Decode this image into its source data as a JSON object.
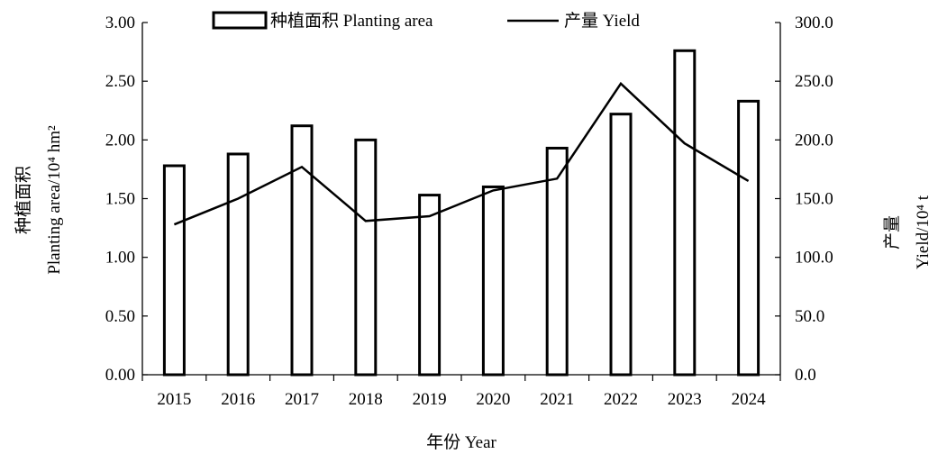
{
  "chart_data": {
    "type": "bar",
    "categories": [
      "2015",
      "2016",
      "2017",
      "2018",
      "2019",
      "2020",
      "2021",
      "2022",
      "2023",
      "2024"
    ],
    "series": [
      {
        "name": "种植面积 Planting area",
        "type": "bar",
        "axis": "left",
        "values": [
          1.78,
          1.88,
          2.12,
          2.0,
          1.53,
          1.6,
          1.93,
          2.22,
          2.76,
          2.33
        ]
      },
      {
        "name": "产量 Yield",
        "type": "line",
        "axis": "right",
        "values": [
          128.0,
          150.0,
          177.0,
          131.0,
          135.0,
          157.0,
          167.0,
          248.0,
          197.0,
          165.0
        ]
      }
    ],
    "xlabel": "年份 Year",
    "ylabel_left_cn": "种植面积",
    "ylabel_left_en": "Planting area/10⁴ hm²",
    "ylabel_right_cn": "产量",
    "ylabel_right_en": "Yield/10⁴ t",
    "ylim_left": [
      0,
      3
    ],
    "ylim_right": [
      0,
      300
    ],
    "yticks_left": [
      "0.00",
      "0.50",
      "1.00",
      "1.50",
      "2.00",
      "2.50",
      "3.00"
    ],
    "yticks_right": [
      "0.0",
      "50.0",
      "100.0",
      "150.0",
      "200.0",
      "250.0",
      "300.0"
    ],
    "grid": false,
    "legend_position": "top-center",
    "colors": {
      "bar_fill": "#ffffff",
      "bar_stroke": "#000000",
      "line": "#000000"
    }
  }
}
